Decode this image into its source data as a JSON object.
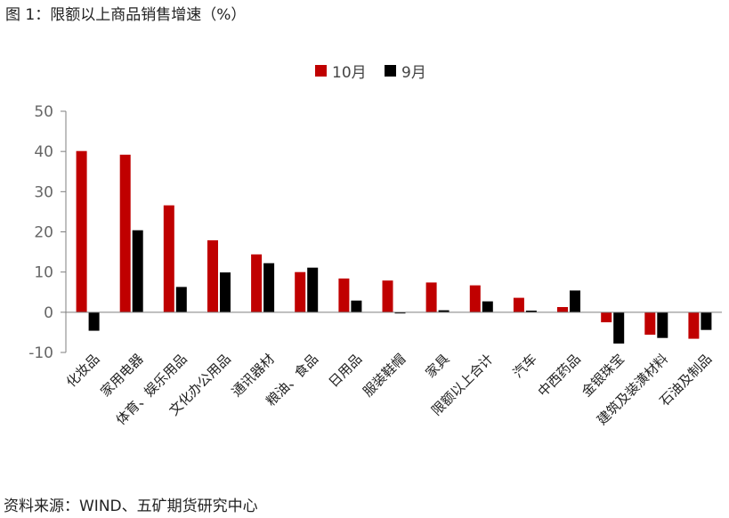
{
  "title": "图 1：限额以上商品销售增速（%）",
  "source": "资料来源：WIND、五矿期货研究中心",
  "colors": {
    "oct": "#C00000",
    "sep": "#000000",
    "axis": "#7f7f7f"
  },
  "chart_data": {
    "type": "bar",
    "categories": [
      "化妆品",
      "家用电器",
      "体育、娱乐用品",
      "文化办公用品",
      "通讯器材",
      "粮油、食品",
      "日用品",
      "服装鞋帽",
      "家具",
      "限额以上合计",
      "汽车",
      "中西药品",
      "金银珠宝",
      "建筑及装潢材料",
      "石油及制品"
    ],
    "series": [
      {
        "name": "10月",
        "values": [
          40.1,
          39.2,
          26.6,
          17.9,
          14.4,
          10.0,
          8.4,
          7.9,
          7.4,
          6.7,
          3.6,
          1.3,
          -2.5,
          -5.6,
          -6.6
        ]
      },
      {
        "name": "9月",
        "values": [
          -4.6,
          20.4,
          6.3,
          9.9,
          12.2,
          11.1,
          2.9,
          -0.3,
          0.5,
          2.7,
          0.4,
          5.4,
          -7.8,
          -6.4,
          -4.4
        ]
      }
    ],
    "ylim": [
      -10,
      50
    ],
    "yticks": [
      -10,
      0,
      10,
      20,
      30,
      40,
      50
    ],
    "legend": "top-center",
    "grid": false
  }
}
